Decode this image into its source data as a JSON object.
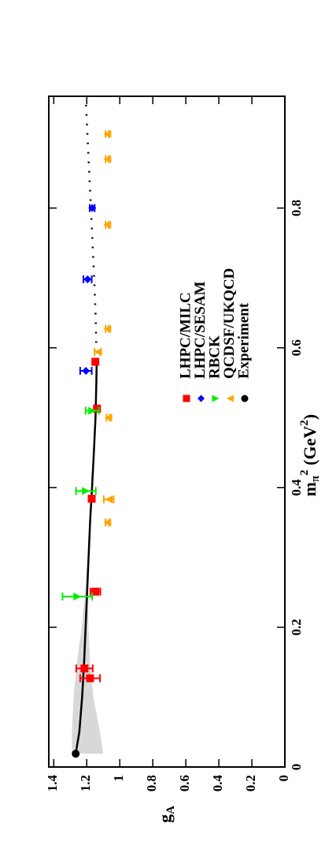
{
  "chart_data": {
    "type": "scatter",
    "xlabel": [
      "m",
      "π",
      "2",
      " (GeV",
      "2",
      ")"
    ],
    "ylabel": [
      "g",
      "A"
    ],
    "xlim": [
      0,
      0.96
    ],
    "ylim": [
      0,
      1.43
    ],
    "xticks": [
      0,
      0.2,
      0.4,
      0.6,
      0.8
    ],
    "yticks": [
      0,
      0.2,
      0.4,
      0.6,
      0.8,
      1,
      1.2,
      1.4
    ],
    "series": [
      {
        "name": "LHPC/MILC",
        "color": "#ff0000",
        "marker": "square",
        "x": [
          0.141,
          0.127,
          0.251,
          0.384,
          0.513,
          0.58
        ],
        "values": [
          1.214,
          1.18,
          1.148,
          1.17,
          1.138,
          1.148
        ],
        "errors": [
          0.05,
          0.06,
          0.03,
          0.015,
          0.015,
          0.01
        ]
      },
      {
        "name": "LHPC/SESAM",
        "color": "#0000ff",
        "marker": "diamond",
        "x": [
          0.567,
          0.698,
          0.8
        ],
        "values": [
          1.205,
          1.195,
          1.167
        ],
        "errors": [
          0.035,
          0.025,
          0.015
        ]
      },
      {
        "name": "RBCK",
        "color": "#00ee00",
        "marker": "triangle-down",
        "x": [
          0.244,
          0.395,
          0.51
        ],
        "values": [
          1.257,
          1.205,
          1.167
        ],
        "errors": [
          0.09,
          0.06,
          0.04
        ]
      },
      {
        "name": "QCDSF/UKQCD",
        "color": "#ffa500",
        "marker": "triangle-up",
        "x": [
          0.35,
          0.383,
          0.5,
          0.594,
          0.627,
          0.776,
          0.87,
          0.906
        ],
        "values": [
          1.076,
          1.067,
          1.07,
          1.133,
          1.076,
          1.076,
          1.076,
          1.076
        ],
        "errors": [
          0.01,
          0.03,
          0.01,
          0.02,
          0.01,
          0.01,
          0.01,
          0.01
        ]
      },
      {
        "name": "Experiment",
        "color": "#000000",
        "marker": "circle",
        "x": [
          0.019
        ],
        "values": [
          1.267
        ]
      }
    ],
    "fit": {
      "color": "#000000",
      "x": [
        0.019,
        0.05,
        0.1,
        0.15,
        0.2,
        0.25,
        0.3,
        0.35,
        0.4,
        0.45,
        0.5,
        0.55,
        0.58
      ],
      "values": [
        1.267,
        1.245,
        1.228,
        1.216,
        1.207,
        1.198,
        1.189,
        1.18,
        1.168,
        1.157,
        1.147,
        1.142,
        1.14
      ]
    },
    "extrapolation": {
      "color": "#000000",
      "x": [
        0.58,
        0.65,
        0.7,
        0.75,
        0.8,
        0.85,
        0.9,
        0.95
      ],
      "values": [
        1.14,
        1.147,
        1.155,
        1.165,
        1.175,
        1.185,
        1.195,
        1.205
      ]
    },
    "band": {
      "color": "#d8d8d8",
      "x": [
        0.019,
        0.05,
        0.1,
        0.15,
        0.2,
        0.25,
        0.3,
        0.35,
        0.4
      ],
      "lower": [
        1.1,
        1.12,
        1.16,
        1.18,
        1.19,
        1.19,
        1.185,
        1.178,
        1.168
      ],
      "upper": [
        1.29,
        1.29,
        1.28,
        1.26,
        1.23,
        1.21,
        1.195,
        1.182,
        1.168
      ]
    }
  }
}
